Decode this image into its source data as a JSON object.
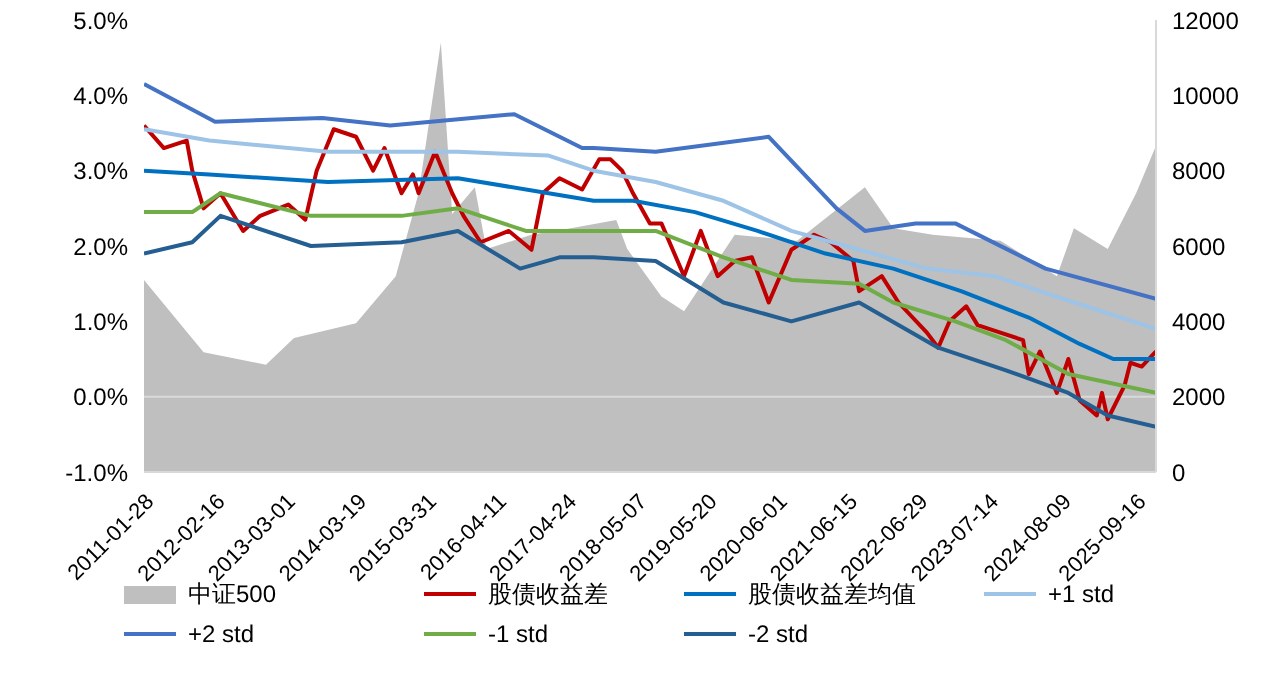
{
  "chart_data": {
    "type": "line",
    "xlim": [
      "2011-01-28",
      "2025-12-31"
    ],
    "xticks": [
      "2011-01-28",
      "2012-02-16",
      "2013-03-01",
      "2014-03-19",
      "2015-03-31",
      "2016-04-11",
      "2017-04-24",
      "2018-05-07",
      "2019-05-20",
      "2020-06-01",
      "2021-06-15",
      "2022-06-29",
      "2023-07-14",
      "2024-08-09",
      "2025-09-16"
    ],
    "ylim": [
      -1,
      5
    ],
    "yticks": [
      {
        "value": -1,
        "label": "-1.0%"
      },
      {
        "value": 0,
        "label": "0.0%"
      },
      {
        "value": 1,
        "label": "1.0%"
      },
      {
        "value": 2,
        "label": "2.0%"
      },
      {
        "value": 3,
        "label": "3.0%"
      },
      {
        "value": 4,
        "label": "4.0%"
      },
      {
        "value": 5,
        "label": "5.0%"
      }
    ],
    "y2lim": [
      0,
      12000
    ],
    "y2ticks": [
      0,
      2000,
      4000,
      6000,
      8000,
      10000,
      12000
    ],
    "grid": false,
    "legend": "bottom",
    "marker": "none",
    "line_style": "solid",
    "ref_lines": [
      {
        "axis": "y",
        "value": 0,
        "color": "#d9d9d9"
      }
    ],
    "series": [
      {
        "name": "中证500",
        "type": "area",
        "axis": "y2",
        "color": "#bfbfbf",
        "x": [
          "2011-01-28",
          "2011-12-15",
          "2012-11-15",
          "2013-04-15",
          "2014-03-15",
          "2014-10-15",
          "2015-02-15",
          "2015-06-15",
          "2015-08-15",
          "2015-12-15",
          "2016-02-15",
          "2016-10-15",
          "2017-05-15",
          "2018-01-15",
          "2018-03-15",
          "2018-09-15",
          "2019-01-15",
          "2019-10-15",
          "2020-09-15",
          "2021-09-15",
          "2022-02-15",
          "2022-09-15",
          "2023-09-15",
          "2024-07-15",
          "2024-10-15",
          "2025-04-15",
          "2025-09-15",
          "2025-12-31"
        ],
        "values": [
          5100,
          3180,
          2850,
          3560,
          3950,
          5200,
          7400,
          11400,
          6850,
          7560,
          5920,
          6300,
          6470,
          6690,
          5920,
          4660,
          4270,
          6300,
          6140,
          7560,
          6470,
          6300,
          6140,
          5200,
          6470,
          5920,
          7400,
          8660
        ]
      },
      {
        "name": "股债收益差",
        "color": "#c00000",
        "x": [
          "2011-01-28",
          "2011-05-15",
          "2011-09-15",
          "2011-10-15",
          "2011-12-15",
          "2012-03-15",
          "2012-07-15",
          "2012-10-15",
          "2013-03-15",
          "2013-06-15",
          "2013-08-15",
          "2013-11-15",
          "2014-03-15",
          "2014-06-15",
          "2014-08-15",
          "2014-11-15",
          "2015-01-15",
          "2015-02-15",
          "2015-05-15",
          "2015-08-15",
          "2015-10-15",
          "2016-01-15",
          "2016-06-15",
          "2016-10-15",
          "2016-12-15",
          "2017-03-15",
          "2017-07-15",
          "2017-10-15",
          "2017-12-15",
          "2018-02-15",
          "2018-04-15",
          "2018-07-15",
          "2018-09-15",
          "2019-01-15",
          "2019-04-15",
          "2019-07-15",
          "2019-10-15",
          "2020-01-15",
          "2020-04-15",
          "2020-08-15",
          "2020-12-15",
          "2021-03-15",
          "2021-07-15",
          "2021-08-15",
          "2021-12-15",
          "2022-03-15",
          "2022-08-15",
          "2022-10-15",
          "2022-12-15",
          "2023-03-15",
          "2023-05-15",
          "2023-09-15",
          "2024-01-15",
          "2024-02-15",
          "2024-04-15",
          "2024-07-15",
          "2024-09-15",
          "2024-11-15",
          "2025-02-15",
          "2025-03-15",
          "2025-04-15",
          "2025-07-15",
          "2025-08-15",
          "2025-10-15",
          "2025-12-31"
        ],
        "values": [
          3.6,
          3.3,
          3.4,
          3.0,
          2.5,
          2.7,
          2.2,
          2.4,
          2.55,
          2.35,
          3.0,
          3.55,
          3.45,
          3.0,
          3.3,
          2.7,
          2.95,
          2.7,
          3.25,
          2.7,
          2.4,
          2.05,
          2.2,
          1.95,
          2.7,
          2.9,
          2.75,
          3.15,
          3.15,
          3.0,
          2.7,
          2.3,
          2.3,
          1.6,
          2.2,
          1.6,
          1.8,
          1.85,
          1.25,
          1.95,
          2.15,
          2.05,
          1.8,
          1.4,
          1.6,
          1.25,
          0.85,
          0.65,
          1.0,
          1.2,
          0.95,
          0.85,
          0.75,
          0.3,
          0.6,
          0.05,
          0.5,
          -0.05,
          -0.25,
          0.05,
          -0.3,
          0.15,
          0.45,
          0.4,
          0.6
        ]
      },
      {
        "name": "股债收益差均值",
        "color": "#0070c0",
        "x": [
          "2011-01-28",
          "2012-01-15",
          "2013-10-15",
          "2015-09-15",
          "2017-01-15",
          "2017-09-15",
          "2018-04-15",
          "2019-03-15",
          "2020-02-15",
          "2021-02-15",
          "2022-02-15",
          "2023-02-15",
          "2024-02-15",
          "2024-11-15",
          "2025-05-15",
          "2025-12-31"
        ],
        "values": [
          3.0,
          2.95,
          2.85,
          2.9,
          2.7,
          2.6,
          2.6,
          2.45,
          2.2,
          1.9,
          1.7,
          1.4,
          1.05,
          0.7,
          0.5,
          0.5
        ]
      },
      {
        "name": "+1 std",
        "color": "#9dc3e6",
        "x": [
          "2011-01-28",
          "2012-01-15",
          "2013-10-15",
          "2015-09-15",
          "2017-01-15",
          "2017-09-15",
          "2018-08-15",
          "2019-08-15",
          "2020-08-15",
          "2021-08-15",
          "2022-08-15",
          "2023-08-15",
          "2024-08-15",
          "2025-12-31"
        ],
        "values": [
          3.55,
          3.4,
          3.25,
          3.25,
          3.2,
          3.0,
          2.85,
          2.6,
          2.2,
          1.95,
          1.7,
          1.6,
          1.3,
          0.9
        ]
      },
      {
        "name": "+2 std",
        "color": "#4472c4",
        "x": [
          "2011-01-28",
          "2012-02-15",
          "2013-09-15",
          "2014-09-15",
          "2016-07-15",
          "2017-07-15",
          "2017-09-15",
          "2018-08-15",
          "2020-04-15",
          "2021-04-15",
          "2021-09-15",
          "2022-06-15",
          "2023-01-15",
          "2024-05-15",
          "2025-12-31"
        ],
        "values": [
          4.15,
          3.65,
          3.7,
          3.6,
          3.75,
          3.3,
          3.3,
          3.25,
          3.45,
          2.5,
          2.2,
          2.3,
          2.3,
          1.7,
          1.3
        ]
      },
      {
        "name": "-1 std",
        "color": "#70ad47",
        "x": [
          "2011-01-28",
          "2011-10-15",
          "2012-03-15",
          "2013-07-15",
          "2014-11-15",
          "2015-09-15",
          "2016-09-15",
          "2017-09-15",
          "2018-08-15",
          "2019-08-15",
          "2020-08-15",
          "2021-08-15",
          "2022-02-15",
          "2023-01-15",
          "2023-10-15",
          "2024-09-15",
          "2025-12-31"
        ],
        "values": [
          2.45,
          2.45,
          2.7,
          2.4,
          2.4,
          2.5,
          2.2,
          2.2,
          2.2,
          1.85,
          1.55,
          1.5,
          1.25,
          1.0,
          0.75,
          0.3,
          0.05
        ]
      },
      {
        "name": "-2 std",
        "color": "#255e91",
        "x": [
          "2011-01-28",
          "2011-10-15",
          "2012-03-15",
          "2013-07-15",
          "2014-11-15",
          "2015-09-15",
          "2016-08-15",
          "2017-03-15",
          "2017-09-15",
          "2018-08-15",
          "2019-08-15",
          "2020-08-15",
          "2021-08-15",
          "2022-10-15",
          "2023-10-15",
          "2024-09-15",
          "2025-04-15",
          "2025-12-31"
        ],
        "values": [
          1.9,
          2.05,
          2.4,
          2.0,
          2.05,
          2.2,
          1.7,
          1.85,
          1.85,
          1.8,
          1.25,
          1.0,
          1.25,
          0.65,
          0.35,
          0.05,
          -0.25,
          -0.4
        ]
      }
    ]
  }
}
